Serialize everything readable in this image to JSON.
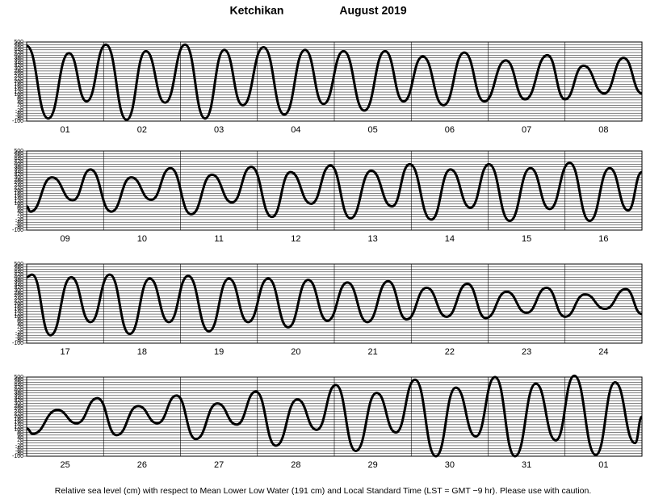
{
  "header": {
    "station": "Ketchikan",
    "month": "August 2019"
  },
  "footer": "Relative sea level (cm) with respect to Mean Lower Low Water (191 cm) and Local Standard Time (LST = GMT −9 hr). Please use with caution.",
  "chart_data": [
    {
      "type": "line",
      "color": "#000000",
      "grid": true,
      "xlim": [
        0,
        8
      ],
      "ylim": [
        -100,
        500
      ],
      "yticks": [
        -100,
        -80,
        -60,
        -40,
        -20,
        0,
        20,
        40,
        60,
        80,
        100,
        120,
        140,
        160,
        180,
        200,
        220,
        240,
        260,
        280,
        300,
        320,
        340,
        360,
        380,
        400,
        420,
        440,
        460,
        480,
        500
      ],
      "xticks": [
        {
          "value": 0.5,
          "label": "01"
        },
        {
          "value": 1.5,
          "label": "02"
        },
        {
          "value": 2.5,
          "label": "03"
        },
        {
          "value": 3.5,
          "label": "04"
        },
        {
          "value": 4.5,
          "label": "05"
        },
        {
          "value": 5.5,
          "label": "06"
        },
        {
          "value": 6.5,
          "label": "07"
        },
        {
          "value": 7.5,
          "label": "08"
        }
      ],
      "x": [
        0,
        0.28,
        0.55,
        0.78,
        1.03,
        1.3,
        1.55,
        1.8,
        2.06,
        2.32,
        2.57,
        2.81,
        3.08,
        3.35,
        3.62,
        3.86,
        4.12,
        4.39,
        4.66,
        4.9,
        5.15,
        5.42,
        5.69,
        5.95,
        6.23,
        6.48,
        6.77,
        7.0,
        7.24,
        7.51,
        7.76,
        8.0
      ],
      "values": [
        470,
        -80,
        415,
        50,
        480,
        -90,
        430,
        40,
        480,
        -80,
        440,
        20,
        460,
        -50,
        440,
        30,
        430,
        -20,
        430,
        50,
        390,
        20,
        420,
        50,
        360,
        65,
        400,
        65,
        320,
        110,
        380,
        110
      ]
    },
    {
      "type": "line",
      "color": "#000000",
      "grid": true,
      "xlim": [
        0,
        8
      ],
      "ylim": [
        -100,
        500
      ],
      "yticks": [
        -100,
        -80,
        -60,
        -40,
        -20,
        0,
        20,
        40,
        60,
        80,
        100,
        120,
        140,
        160,
        180,
        200,
        220,
        240,
        260,
        280,
        300,
        320,
        340,
        360,
        380,
        400,
        420,
        440,
        460,
        480,
        500
      ],
      "xticks": [
        {
          "value": 0.5,
          "label": "09"
        },
        {
          "value": 1.5,
          "label": "10"
        },
        {
          "value": 2.5,
          "label": "11"
        },
        {
          "value": 3.5,
          "label": "12"
        },
        {
          "value": 4.5,
          "label": "13"
        },
        {
          "value": 5.5,
          "label": "14"
        },
        {
          "value": 6.5,
          "label": "15"
        },
        {
          "value": 7.5,
          "label": "16"
        }
      ],
      "x": [
        0,
        0.05,
        0.33,
        0.6,
        0.83,
        1.1,
        1.36,
        1.62,
        1.87,
        2.14,
        2.41,
        2.67,
        2.92,
        3.19,
        3.43,
        3.7,
        3.95,
        4.21,
        4.48,
        4.75,
        4.98,
        5.26,
        5.51,
        5.77,
        6.01,
        6.28,
        6.55,
        6.8,
        7.06,
        7.32,
        7.58,
        7.82,
        8.0
      ],
      "values": [
        80,
        40,
        300,
        126,
        360,
        40,
        300,
        130,
        370,
        20,
        320,
        110,
        380,
        0,
        340,
        100,
        390,
        -10,
        350,
        80,
        400,
        -20,
        360,
        70,
        400,
        -30,
        370,
        60,
        410,
        -30,
        370,
        50,
        340
      ]
    },
    {
      "type": "line",
      "color": "#000000",
      "grid": true,
      "xlim": [
        0,
        8
      ],
      "ylim": [
        -100,
        500
      ],
      "yticks": [
        -100,
        -80,
        -60,
        -40,
        -20,
        0,
        20,
        40,
        60,
        80,
        100,
        120,
        140,
        160,
        180,
        200,
        220,
        240,
        260,
        280,
        300,
        320,
        340,
        360,
        380,
        400,
        420,
        440,
        460,
        480,
        500
      ],
      "xticks": [
        {
          "value": 0.5,
          "label": "17"
        },
        {
          "value": 1.5,
          "label": "18"
        },
        {
          "value": 2.5,
          "label": "19"
        },
        {
          "value": 3.5,
          "label": "20"
        },
        {
          "value": 4.5,
          "label": "21"
        },
        {
          "value": 5.5,
          "label": "22"
        },
        {
          "value": 6.5,
          "label": "23"
        },
        {
          "value": 7.5,
          "label": "24"
        }
      ],
      "x": [
        0,
        0.07,
        0.31,
        0.58,
        0.83,
        1.08,
        1.34,
        1.6,
        1.85,
        2.1,
        2.37,
        2.63,
        2.88,
        3.14,
        3.4,
        3.66,
        3.91,
        4.17,
        4.43,
        4.7,
        4.94,
        5.2,
        5.46,
        5.73,
        5.97,
        6.24,
        6.5,
        6.76,
        7.0,
        7.26,
        7.52,
        7.79,
        8.0
      ],
      "values": [
        400,
        420,
        -40,
        400,
        60,
        420,
        -30,
        390,
        60,
        410,
        -10,
        390,
        60,
        390,
        20,
        380,
        70,
        360,
        60,
        370,
        80,
        320,
        100,
        350,
        90,
        290,
        130,
        320,
        100,
        270,
        160,
        310,
        120
      ]
    },
    {
      "type": "line",
      "color": "#000000",
      "grid": true,
      "xlim": [
        0,
        8
      ],
      "ylim": [
        -100,
        500
      ],
      "yticks": [
        -100,
        -80,
        -60,
        -40,
        -20,
        0,
        20,
        40,
        60,
        80,
        100,
        120,
        140,
        160,
        180,
        200,
        220,
        240,
        260,
        280,
        300,
        320,
        340,
        360,
        380,
        400,
        420,
        440,
        460,
        480,
        500
      ],
      "xticks": [
        {
          "value": 0.5,
          "label": "25"
        },
        {
          "value": 1.5,
          "label": "26"
        },
        {
          "value": 2.5,
          "label": "27"
        },
        {
          "value": 3.5,
          "label": "28"
        },
        {
          "value": 4.5,
          "label": "29"
        },
        {
          "value": 5.5,
          "label": "30"
        },
        {
          "value": 6.5,
          "label": "31"
        },
        {
          "value": 7.5,
          "label": "01"
        }
      ],
      "x": [
        0,
        0.08,
        0.4,
        0.65,
        0.92,
        1.17,
        1.45,
        1.7,
        1.95,
        2.2,
        2.48,
        2.73,
        2.98,
        3.24,
        3.52,
        3.77,
        4.02,
        4.28,
        4.55,
        4.8,
        5.05,
        5.32,
        5.58,
        5.84,
        6.09,
        6.35,
        6.62,
        6.88,
        7.12,
        7.4,
        7.65,
        7.91,
        8.0
      ],
      "values": [
        110,
        70,
        250,
        150,
        340,
        60,
        280,
        150,
        360,
        30,
        300,
        140,
        390,
        -20,
        330,
        100,
        440,
        -60,
        380,
        80,
        480,
        -100,
        420,
        50,
        500,
        -100,
        450,
        20,
        510,
        -90,
        460,
        0,
        200
      ]
    }
  ]
}
